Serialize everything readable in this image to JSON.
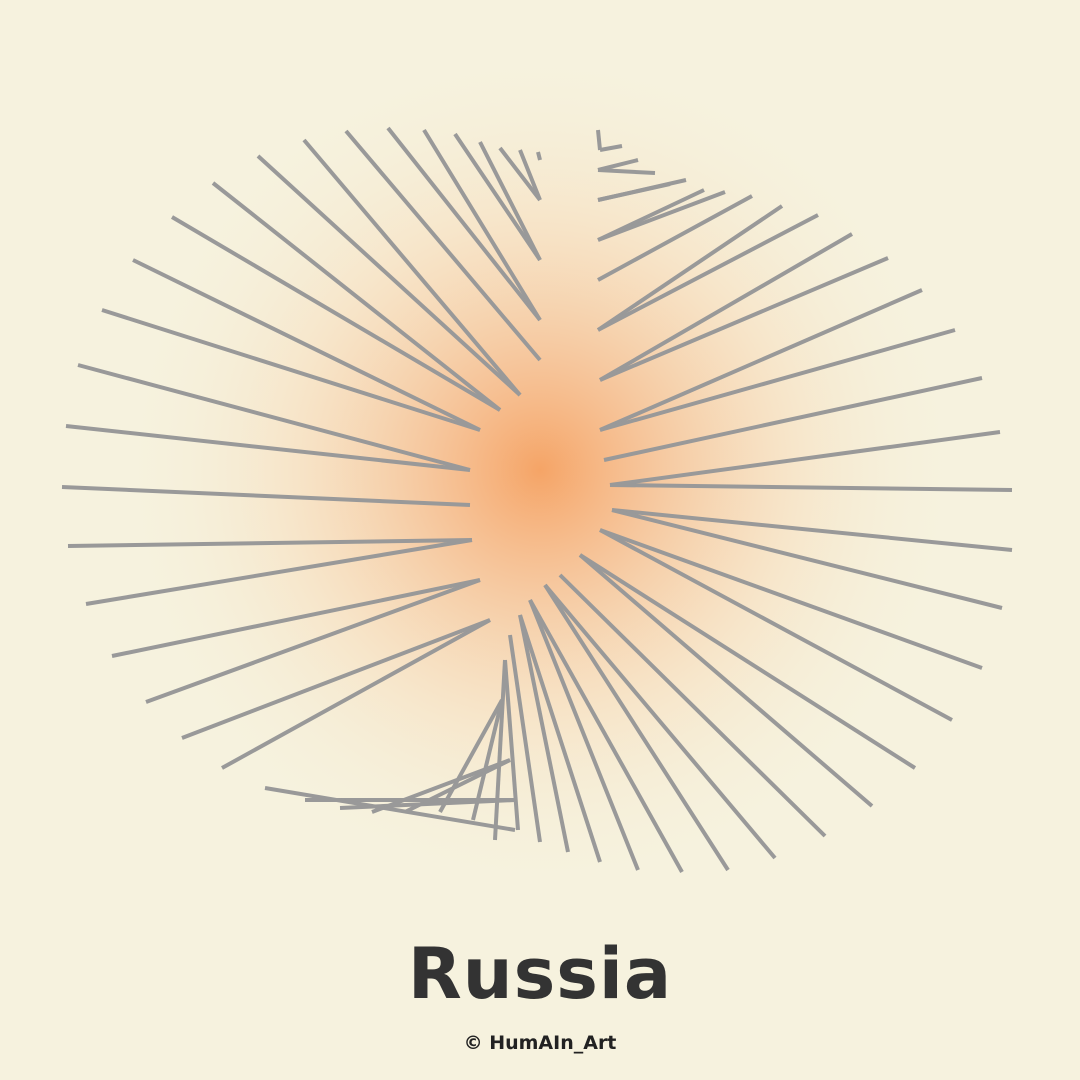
{
  "artwork": {
    "title": "Russia",
    "credit": "© HumAIn_Art",
    "colors": {
      "background": "#f6f2de",
      "glow_center": "#f5a060",
      "rays": "#999999",
      "text": "#333333"
    }
  }
}
